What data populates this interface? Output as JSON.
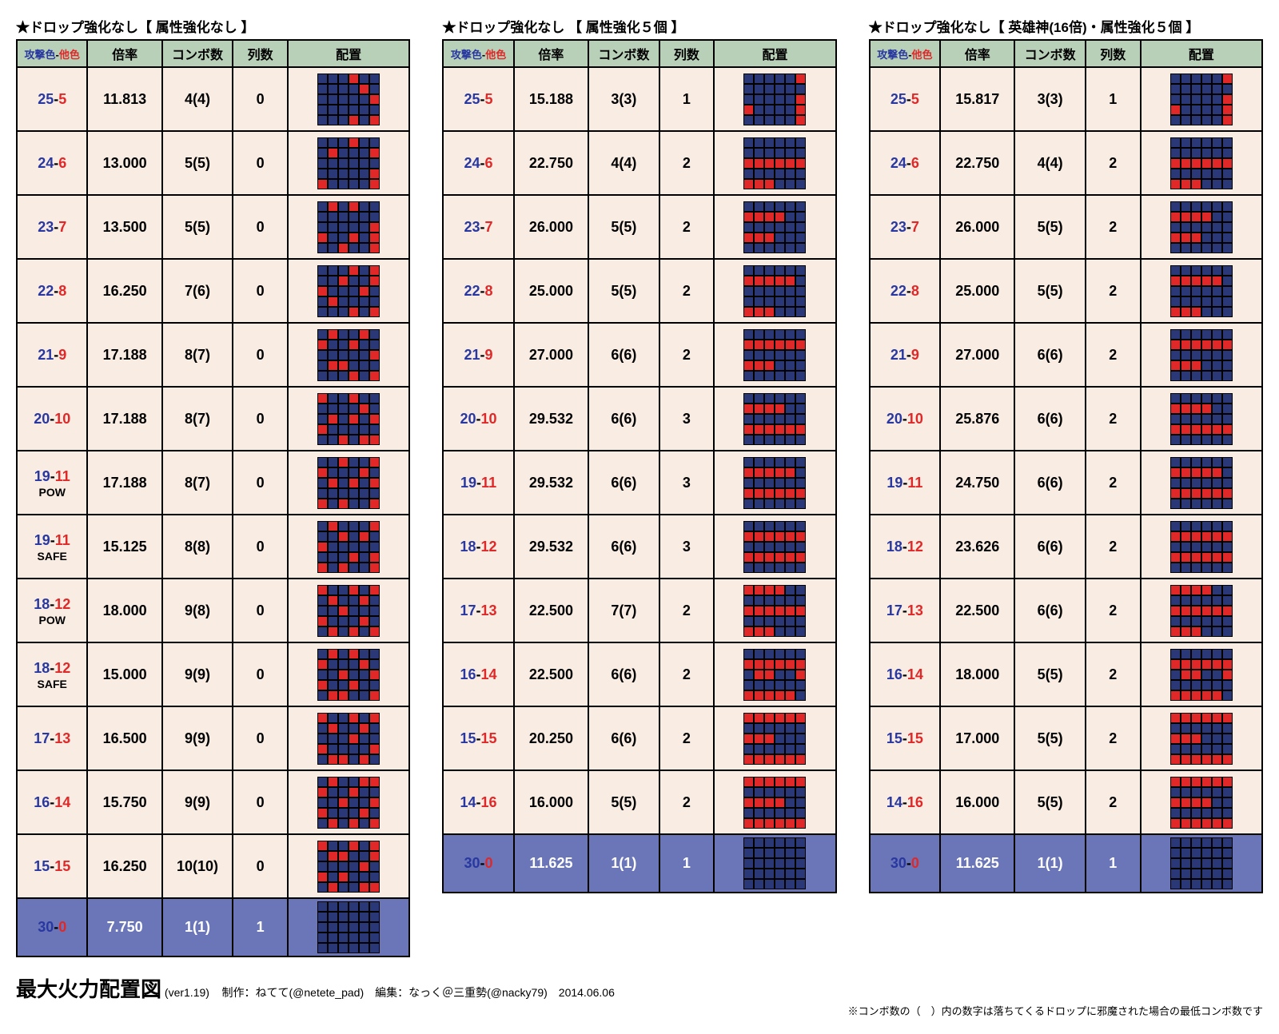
{
  "colors": {
    "header_bg": "#b8cfb8",
    "cell_bg": "#f9ece3",
    "footer_bg": "#6b76b8",
    "blue_text": "#2838a0",
    "red_text": "#e02828",
    "grid_blue": "#2a3878",
    "grid_red": "#e02828",
    "border": "#000000"
  },
  "headers": {
    "atk_a": "攻撃色",
    "atk_b": "他色",
    "rate": "倍率",
    "combo": "コンボ数",
    "cols": "列数",
    "layout": "配置"
  },
  "tables": [
    {
      "title": "★ドロップ強化なし【 属性強化なし 】",
      "rows": [
        {
          "a": "25",
          "b": "5",
          "rate": "11.813",
          "combo": "4(4)",
          "cols": "0",
          "grid": "bbbrbb bbbbrb bbbbbr bbbbbb bbbrbr"
        },
        {
          "a": "24",
          "b": "6",
          "rate": "13.000",
          "combo": "5(5)",
          "cols": "0",
          "grid": "bbbrbb brbbbr bbbbbb bbbbbr rbbbbr"
        },
        {
          "a": "23",
          "b": "7",
          "rate": "13.500",
          "combo": "5(5)",
          "cols": "0",
          "grid": "brbrbb bbbbbb bbbbbr rbbrbr bbrbbr"
        },
        {
          "a": "22",
          "b": "8",
          "rate": "16.250",
          "combo": "7(6)",
          "cols": "0",
          "grid": "bbbrbr bbrbbr rbbbrb brbbbb bbbrbr"
        },
        {
          "a": "21",
          "b": "9",
          "rate": "17.188",
          "combo": "8(7)",
          "cols": "0",
          "grid": "brbbrb rbbrbb bbbbbr brrbbb bbbrbr"
        },
        {
          "a": "20",
          "b": "10",
          "rate": "17.188",
          "combo": "8(7)",
          "cols": "0",
          "grid": "rbbrbb bbbbrb brbrbr rbbbbb bbrbrr"
        },
        {
          "a": "19",
          "b": "11",
          "tag": "POW",
          "rate": "17.188",
          "combo": "8(7)",
          "cols": "0",
          "grid": "bbrbbr rbbbrb brbrbr bbbbbb rbrbbr"
        },
        {
          "a": "19",
          "b": "11",
          "tag": "SAFE",
          "rate": "15.125",
          "combo": "8(8)",
          "cols": "0",
          "grid": "brbbbr bbrbrb rbbbbb bbbrbr rbrbbr"
        },
        {
          "a": "18",
          "b": "12",
          "tag": "POW",
          "rate": "18.000",
          "combo": "9(8)",
          "cols": "0",
          "grid": "rbbrbr brbbrb bbrbbb rbbbrb brbrbr"
        },
        {
          "a": "18",
          "b": "12",
          "tag": "SAFE",
          "rate": "15.000",
          "combo": "9(9)",
          "cols": "0",
          "grid": "brbrbb rbbbrb bbrbbr rbbrbb brrbbr"
        },
        {
          "a": "17",
          "b": "13",
          "rate": "16.500",
          "combo": "9(9)",
          "cols": "0",
          "grid": "rbbrbr brbbrb bbbrbb rbbbbr brrbrb"
        },
        {
          "a": "16",
          "b": "14",
          "rate": "15.750",
          "combo": "9(9)",
          "cols": "0",
          "grid": "brbbrr rbbrbb bbrbbr rbbbrb brbrbr"
        },
        {
          "a": "15",
          "b": "15",
          "rate": "16.250",
          "combo": "10(10)",
          "cols": "0",
          "grid": "rbbrbr brrbbr bbbbrb rbrbbb brbbrr"
        }
      ],
      "footer": {
        "a": "30",
        "b": "0",
        "rate": "7.750",
        "combo": "1(1)",
        "cols": "1",
        "grid": "bbbbbb bbbbbb bbbbbb bbbbbb bbbbbb"
      }
    },
    {
      "title": "★ドロップ強化なし 【 属性強化５個 】",
      "rows": [
        {
          "a": "25",
          "b": "5",
          "rate": "15.188",
          "combo": "3(3)",
          "cols": "1",
          "grid": "bbbbbr bbbbbb bbbbbr rbbbbr bbbbbr"
        },
        {
          "a": "24",
          "b": "6",
          "rate": "22.750",
          "combo": "4(4)",
          "cols": "2",
          "grid": "bbbbbb bbbbbb rrrrrr bbbbbb rrrbbb"
        },
        {
          "a": "23",
          "b": "7",
          "rate": "26.000",
          "combo": "5(5)",
          "cols": "2",
          "grid": "bbbbbb rrrrbb bbbbbb rrrbbb bbbbbb"
        },
        {
          "a": "22",
          "b": "8",
          "rate": "25.000",
          "combo": "5(5)",
          "cols": "2",
          "grid": "bbbbbb rrrrrb bbbbbb bbbbbb rrrbbb"
        },
        {
          "a": "21",
          "b": "9",
          "rate": "27.000",
          "combo": "6(6)",
          "cols": "2",
          "grid": "bbbbbb rrrrrr bbbbbb rrrbbb bbbbbb"
        },
        {
          "a": "20",
          "b": "10",
          "rate": "29.532",
          "combo": "6(6)",
          "cols": "3",
          "grid": "bbbbbb rrrrbb bbbbbb rrrrrr bbbbbb"
        },
        {
          "a": "19",
          "b": "11",
          "rate": "29.532",
          "combo": "6(6)",
          "cols": "3",
          "grid": "bbbbbb rrrrrb bbbbbb rrrrrr bbbbbb"
        },
        {
          "a": "18",
          "b": "12",
          "rate": "29.532",
          "combo": "6(6)",
          "cols": "3",
          "grid": "bbbbbb rrrrrr bbbbbb rrrrrr bbbbbb"
        },
        {
          "a": "17",
          "b": "13",
          "rate": "22.500",
          "combo": "7(7)",
          "cols": "2",
          "grid": "rrrrbb bbbbbb rrrrrr bbbbbb rrrbbb"
        },
        {
          "a": "16",
          "b": "14",
          "rate": "22.500",
          "combo": "6(6)",
          "cols": "2",
          "grid": "bbbbbb rrrrrr brrbbr bbbbbb rrrrrb"
        },
        {
          "a": "15",
          "b": "15",
          "rate": "20.250",
          "combo": "6(6)",
          "cols": "2",
          "grid": "rrrrrr bbbbbb rrrbbb bbbbbb rrrrrr"
        },
        {
          "a": "14",
          "b": "16",
          "rate": "16.000",
          "combo": "5(5)",
          "cols": "2",
          "grid": "rrrrrr bbbbbb rrrrbb bbbbbb rrrrrr"
        }
      ],
      "footer": {
        "a": "30",
        "b": "0",
        "rate": "11.625",
        "combo": "1(1)",
        "cols": "1",
        "grid": "bbbbbb bbbbbb bbbbbb bbbbbb bbbbbb"
      }
    },
    {
      "title": "★ドロップ強化なし【 英雄神(16倍)・属性強化５個 】",
      "rows": [
        {
          "a": "25",
          "b": "5",
          "rate": "15.817",
          "combo": "3(3)",
          "cols": "1",
          "grid": "bbbbbr bbbbbb bbbbbr rbbbbr bbbbbr"
        },
        {
          "a": "24",
          "b": "6",
          "rate": "22.750",
          "combo": "4(4)",
          "cols": "2",
          "grid": "bbbbbb bbbbbb rrrrrr bbbbbb rrrbbb"
        },
        {
          "a": "23",
          "b": "7",
          "rate": "26.000",
          "combo": "5(5)",
          "cols": "2",
          "grid": "bbbbbb rrrrbb bbbbbb rrrbbb bbbbbb"
        },
        {
          "a": "22",
          "b": "8",
          "rate": "25.000",
          "combo": "5(5)",
          "cols": "2",
          "grid": "bbbbbb rrrrrb bbbbbb bbbbbb rrrbbb"
        },
        {
          "a": "21",
          "b": "9",
          "rate": "27.000",
          "combo": "6(6)",
          "cols": "2",
          "grid": "bbbbbb rrrrrr bbbbbb rrrbbb bbbbbb"
        },
        {
          "a": "20",
          "b": "10",
          "rate": "25.876",
          "combo": "6(6)",
          "cols": "2",
          "grid": "bbbbbb rrrrbb bbbbbb rrrrrr bbbbbb"
        },
        {
          "a": "19",
          "b": "11",
          "rate": "24.750",
          "combo": "6(6)",
          "cols": "2",
          "grid": "bbbbbb rrrrrb bbbbbb rrrrrr bbbbbb"
        },
        {
          "a": "18",
          "b": "12",
          "rate": "23.626",
          "combo": "6(6)",
          "cols": "2",
          "grid": "bbbbbb rrrrrr bbbbbb rrrrrr bbbbbb"
        },
        {
          "a": "17",
          "b": "13",
          "rate": "22.500",
          "combo": "6(6)",
          "cols": "2",
          "grid": "rrrrbb bbbbbb rrrrrr bbbbbb rrrbbb"
        },
        {
          "a": "16",
          "b": "14",
          "rate": "18.000",
          "combo": "5(5)",
          "cols": "2",
          "grid": "bbbbbb rrrrrr brrbbr bbbbbb rrrrrb"
        },
        {
          "a": "15",
          "b": "15",
          "rate": "17.000",
          "combo": "5(5)",
          "cols": "2",
          "grid": "rrrrrr bbbbbb rrrbbb bbbbbb rrrrrr"
        },
        {
          "a": "14",
          "b": "16",
          "rate": "16.000",
          "combo": "5(5)",
          "cols": "2",
          "grid": "rrrrrr bbbbbb rrrrbb bbbbbb rrrrrr"
        }
      ],
      "footer": {
        "a": "30",
        "b": "0",
        "rate": "11.625",
        "combo": "1(1)",
        "cols": "1",
        "grid": "bbbbbb bbbbbb bbbbbb bbbbbb bbbbbb"
      }
    }
  ],
  "footnote": {
    "title": "最大火力配置図",
    "ver": "(ver1.19)",
    "credit": "制作：ねてて(@netete_pad)　編集：なっく＠三重勢(@nacky79)　2014.06.06",
    "note": "※コンボ数の（　）内の数字は落ちてくるドロップに邪魔された場合の最低コンボ数です"
  }
}
